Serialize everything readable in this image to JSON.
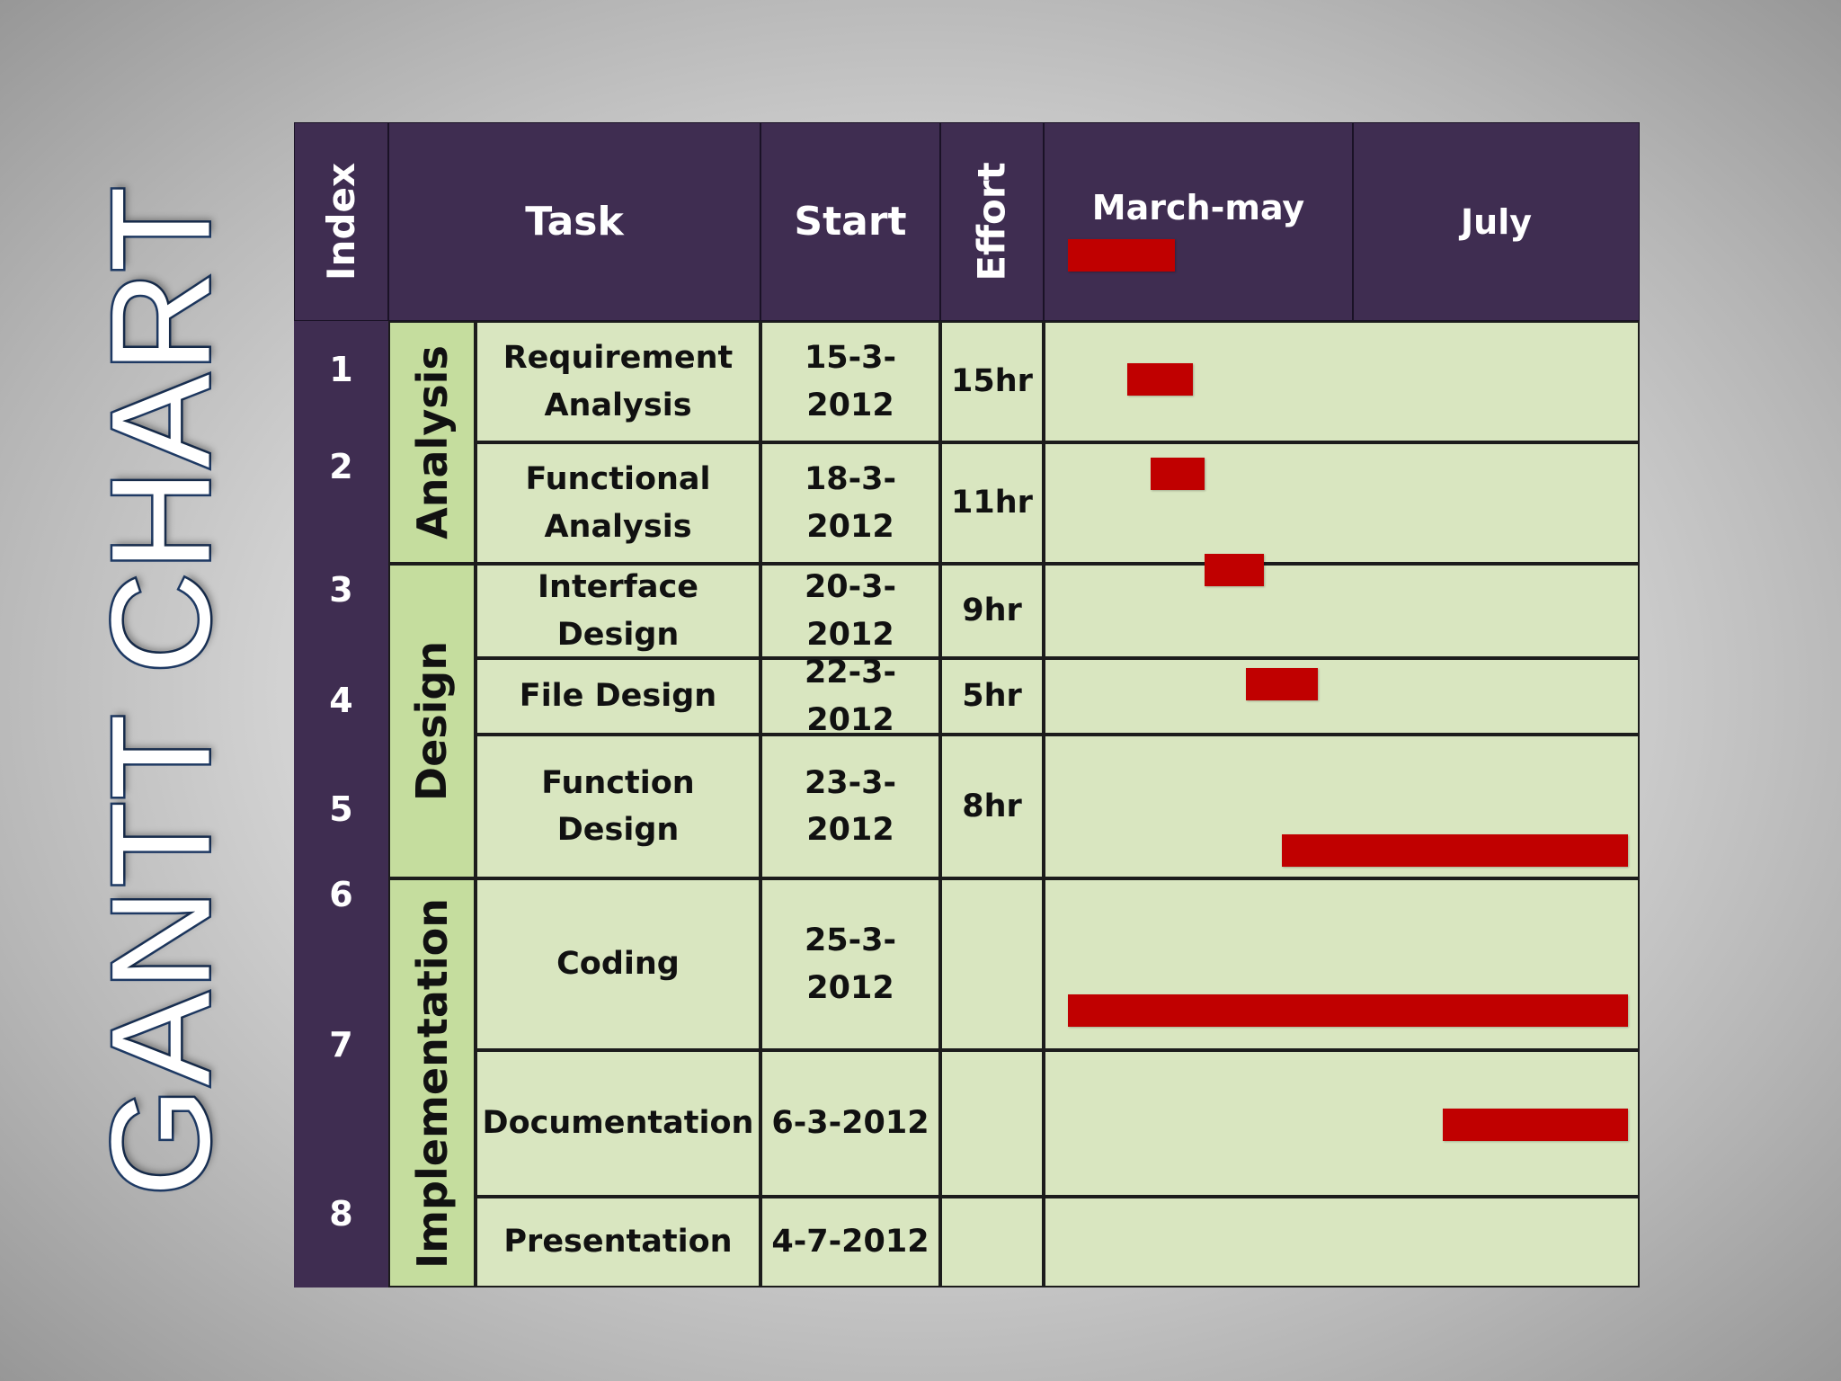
{
  "title": "GANTT CHART",
  "headers": {
    "index": "Index",
    "task": "Task",
    "start": "Start",
    "effort": "Effort",
    "period1": "March-may",
    "period2": "July"
  },
  "phases": [
    {
      "label": "Analysis"
    },
    {
      "label": "Design"
    },
    {
      "label": "Implementation"
    }
  ],
  "chart_data": {
    "type": "table",
    "columns": [
      "Index",
      "Task",
      "Start",
      "Effort",
      "March-may",
      "July"
    ],
    "rows": [
      {
        "index": "1",
        "phase": "Analysis",
        "task": "Requirement Analysis",
        "start": "15-3-2012",
        "effort": "15hr"
      },
      {
        "index": "2",
        "phase": "Analysis",
        "task": "Functional Analysis",
        "start": "18-3-2012",
        "effort": "11hr"
      },
      {
        "index": "3",
        "phase": "Design",
        "task": "Interface Design",
        "start": "20-3-2012",
        "effort": "9hr"
      },
      {
        "index": "4",
        "phase": "Design",
        "task": "File Design",
        "start": "22-3-2012",
        "effort": "5hr"
      },
      {
        "index": "5",
        "phase": "Design",
        "task": "Function Design",
        "start": "23-3-2012",
        "effort": "8hr"
      },
      {
        "index": "6",
        "phase": "Implementation",
        "task": "Coding",
        "start": "25-3-2012",
        "effort": ""
      },
      {
        "index": "7",
        "phase": "Implementation",
        "task": "Documentation",
        "start": "6-3-2012",
        "effort": ""
      },
      {
        "index": "8",
        "phase": "Implementation",
        "task": "Presentation",
        "start": "4-7-2012",
        "effort": ""
      }
    ],
    "timeline_bars": [
      {
        "task": "Requirement Analysis",
        "start": 0.04,
        "end": 0.22
      },
      {
        "task": "Functional Analysis",
        "start": 0.14,
        "end": 0.25
      },
      {
        "task": "Interface Design",
        "start": 0.18,
        "end": 0.27
      },
      {
        "task": "File Design",
        "start": 0.27,
        "end": 0.37
      },
      {
        "task": "Function Design",
        "start": 0.34,
        "end": 0.46
      },
      {
        "task": "Coding",
        "start": 0.4,
        "end": 0.98
      },
      {
        "task": "Documentation",
        "start": 0.04,
        "end": 0.98
      },
      {
        "task": "Presentation",
        "start": 0.67,
        "end": 0.98
      }
    ],
    "colors": {
      "header": "#3f2d51",
      "phase": "#c5dd9e",
      "body": "#d9e6c0",
      "bar": "#c00000",
      "title_outline": "#1f3b66"
    }
  }
}
